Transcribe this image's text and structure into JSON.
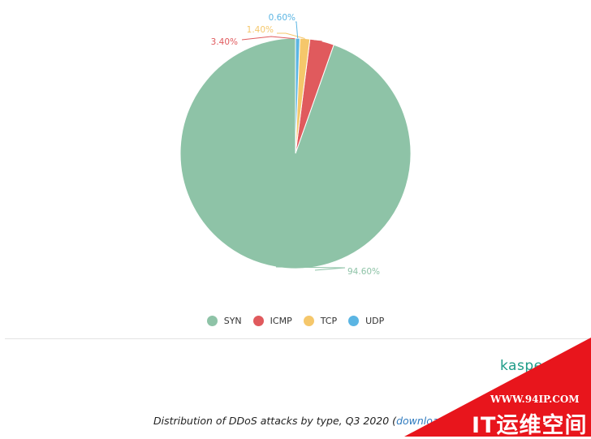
{
  "chart_data": {
    "type": "pie",
    "title": "",
    "categories": [
      "SYN",
      "ICMP",
      "TCP",
      "UDP"
    ],
    "values": [
      94.6,
      3.4,
      1.4,
      0.6
    ],
    "value_labels": [
      "94.60%",
      "3.40%",
      "1.40%",
      "0.60%"
    ],
    "colors": [
      "#8ec3a7",
      "#e05a5d",
      "#f5c76b",
      "#5bb5e3"
    ],
    "legend_position": "bottom",
    "grid": false
  },
  "legend": [
    {
      "label": "SYN",
      "color": "#8ec3a7"
    },
    {
      "label": "ICMP",
      "color": "#e05a5d"
    },
    {
      "label": "TCP",
      "color": "#f5c76b"
    },
    {
      "label": "UDP",
      "color": "#5bb5e3"
    }
  ],
  "brand": {
    "text": "kaspe"
  },
  "caption": {
    "text": "Distribution of DDoS attacks by type, Q3 2020 (",
    "link": "download"
  },
  "watermark": {
    "url": "WWW.94IP.COM",
    "name": "IT运维空间",
    "color": "#e8151c"
  }
}
